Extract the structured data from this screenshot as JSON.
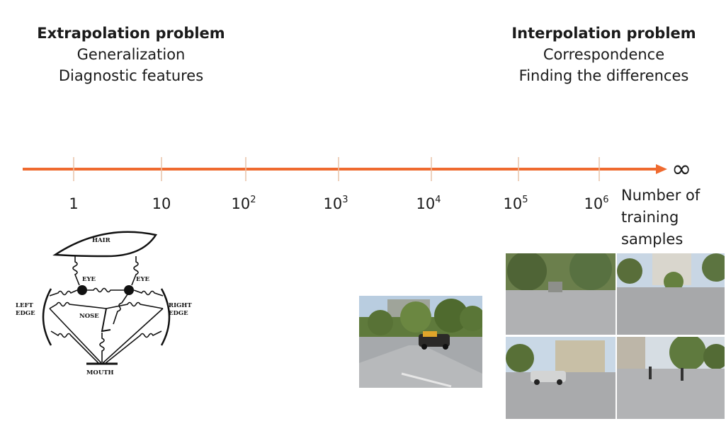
{
  "left": {
    "title": "Extrapolation problem",
    "line1": "Generalization",
    "line2": "Diagnostic features"
  },
  "right": {
    "title": "Interpolation problem",
    "line1": "Correspondence",
    "line2": "Finding the differences"
  },
  "axis": {
    "color": "#ef6a2f",
    "ticks": [
      {
        "base": "1",
        "exp": ""
      },
      {
        "base": "10",
        "exp": ""
      },
      {
        "base": "10",
        "exp": "2"
      },
      {
        "base": "10",
        "exp": "3"
      },
      {
        "base": "10",
        "exp": "4"
      },
      {
        "base": "10",
        "exp": "5"
      },
      {
        "base": "10",
        "exp": "6"
      }
    ],
    "end_symbol": "∞",
    "label_line1": "Number of",
    "label_line2": "training",
    "label_line3": "samples"
  },
  "face_model": {
    "hair": "HAIR",
    "eye_left": "EYE",
    "eye_right": "EYE",
    "left_edge_1": "LEFT",
    "left_edge_2": "EDGE",
    "right_edge_1": "RIGHT",
    "right_edge_2": "EDGE",
    "nose": "NOSE",
    "mouth": "MOUTH"
  },
  "photos": {
    "single": "street-scene-photo",
    "grid": [
      "street-scene-photo",
      "street-scene-photo",
      "street-scene-photo",
      "street-scene-photo"
    ]
  }
}
